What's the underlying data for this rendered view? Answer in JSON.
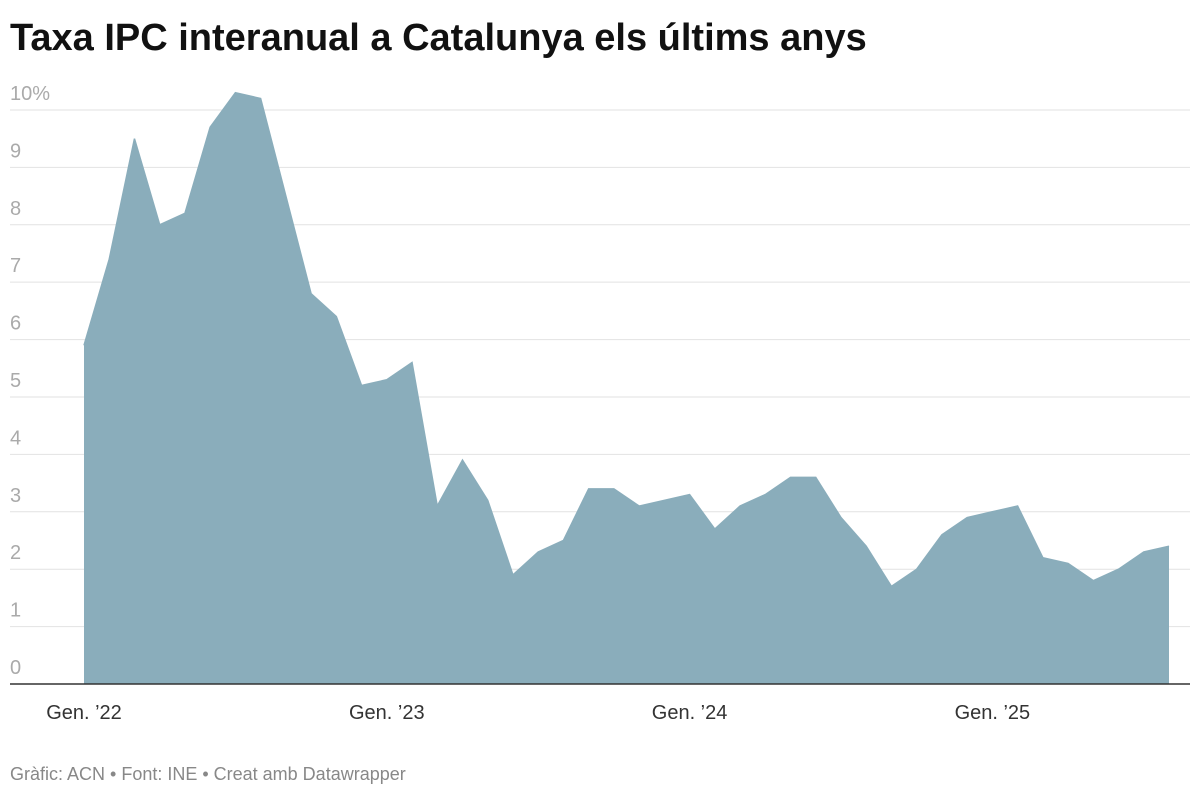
{
  "chart_data": {
    "type": "area",
    "title": "Taxa IPC interanual a Catalunya els últims anys",
    "source": "Gràfic: ACN • Font: INE • Creat amb Datawrapper",
    "categories": [
      "Gen. ’22",
      null,
      null,
      null,
      null,
      null,
      null,
      null,
      null,
      null,
      null,
      null,
      "Gen. ’23",
      null,
      null,
      null,
      null,
      null,
      null,
      null,
      null,
      null,
      null,
      null,
      "Gen. ’24",
      null,
      null,
      null,
      null,
      null,
      null,
      null,
      null,
      null,
      null,
      null,
      "Gen. ’25",
      null,
      null,
      null,
      null,
      null,
      null,
      null
    ],
    "series": [
      {
        "name": "Taxa IPC interanual",
        "color": "#8aadbb",
        "values": [
          5.9,
          7.4,
          9.5,
          8.0,
          8.2,
          9.7,
          10.3,
          10.2,
          8.5,
          6.8,
          6.4,
          5.2,
          5.3,
          5.6,
          3.1,
          3.9,
          3.2,
          1.9,
          2.3,
          2.5,
          3.4,
          3.4,
          3.1,
          3.2,
          3.3,
          2.7,
          3.1,
          3.3,
          3.6,
          3.6,
          2.9,
          2.4,
          1.7,
          2.0,
          2.6,
          2.9,
          3.0,
          3.1,
          2.2,
          2.1,
          1.8,
          2.0,
          2.3,
          2.4
        ]
      }
    ],
    "ylim": [
      0,
      10.4
    ],
    "yticks": [
      0,
      1,
      2,
      3,
      4,
      5,
      6,
      7,
      8,
      9,
      {
        "value": 10,
        "label": "10%"
      }
    ],
    "grid": true
  }
}
